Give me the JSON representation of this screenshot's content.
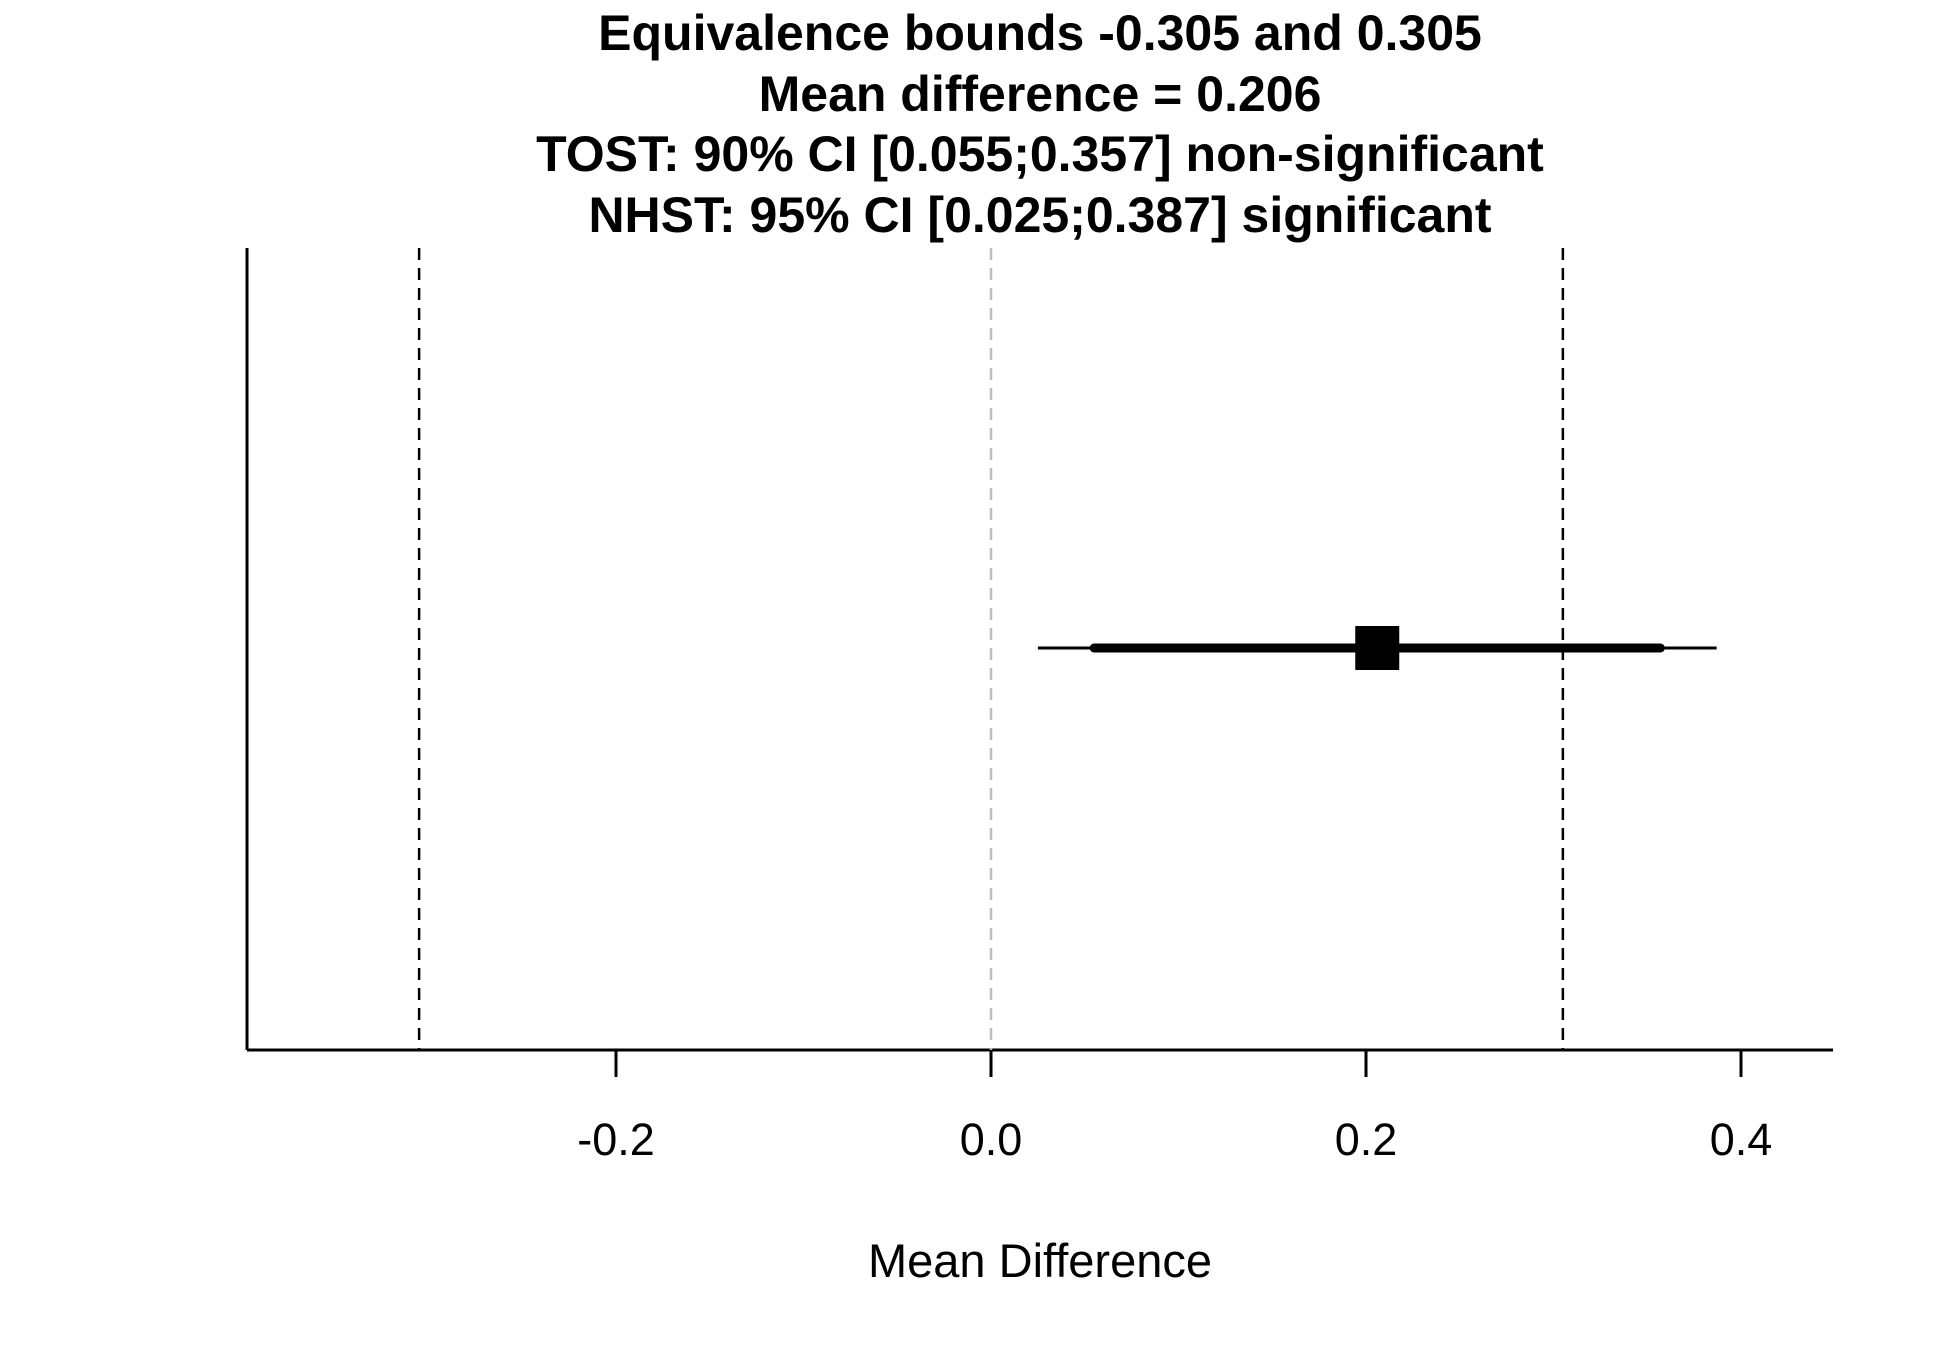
{
  "chart_data": {
    "type": "forest",
    "title_lines": [
      "Equivalence bounds -0.305 and 0.305",
      "Mean difference = 0.206",
      "TOST: 90% CI [0.055;0.357] non-significant",
      "NHST: 95% CI [0.025;0.387] significant"
    ],
    "xlabel": "Mean Difference",
    "ylabel": "",
    "xlim": [
      -0.4,
      0.45
    ],
    "x_ticks": [
      -0.2,
      0.0,
      0.2,
      0.4
    ],
    "x_tick_labels": [
      "-0.2",
      "0.0",
      "0.2",
      "0.4"
    ],
    "equivalence_bounds": [
      -0.305,
      0.305
    ],
    "null_value": 0.0,
    "mean_difference": 0.206,
    "ci_90": [
      0.055,
      0.357
    ],
    "ci_95": [
      0.025,
      0.387
    ],
    "colors": {
      "foreground": "#000000",
      "null_line": "#bebebe",
      "background": "#ffffff"
    }
  }
}
